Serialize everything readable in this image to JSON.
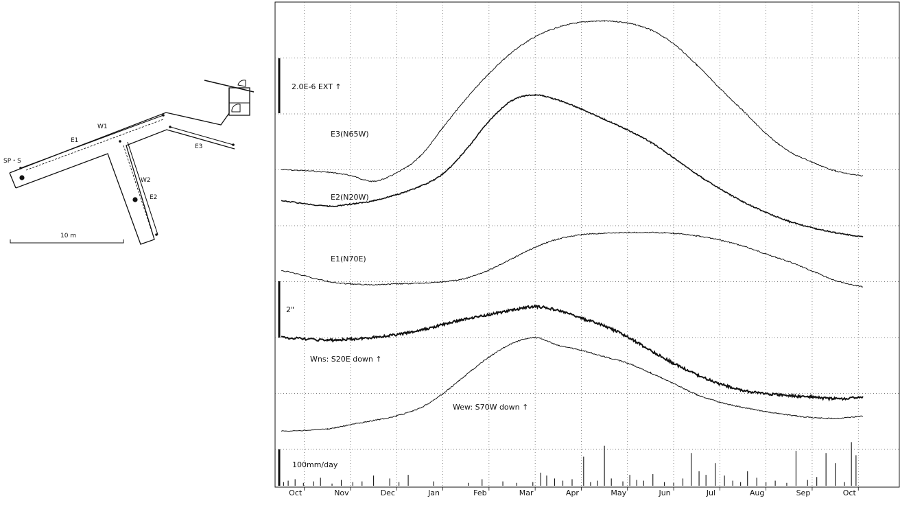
{
  "map": {
    "scale_label": "10 m",
    "labels": {
      "sp": "SP・S",
      "e1": "E1",
      "w1": "W1",
      "e3": "E3",
      "w2": "W2",
      "e2": "E2"
    }
  },
  "chart_data": {
    "type": "line",
    "x_unit": "month",
    "categories": [
      "Oct",
      "Nov",
      "Dec",
      "Jan",
      "Feb",
      "Mar",
      "Apr",
      "May",
      "Jun",
      "Jul",
      "Aug",
      "Sep",
      "Oct"
    ],
    "scales": {
      "strain": "2.0E-6 EXT ↑",
      "tilt": "2\"",
      "rain": "100mm/day"
    },
    "grid": true,
    "series": [
      {
        "name": "E3(N65W)",
        "x": [
          0,
          1,
          1.5,
          2,
          2.5,
          3,
          3.5,
          4,
          4.5,
          5,
          5.5,
          6,
          6.5,
          7,
          7.5,
          8,
          8.5,
          9,
          9.5,
          10,
          10.5,
          11,
          11.5,
          12,
          12.6
        ],
        "y": [
          0.26,
          0.2,
          0.11,
          -0.04,
          0.18,
          0.6,
          1.36,
          2.1,
          2.76,
          3.32,
          3.72,
          3.97,
          4.1,
          4.13,
          4.08,
          3.9,
          3.54,
          2.99,
          2.38,
          1.8,
          1.2,
          0.74,
          0.46,
          0.23,
          0.1
        ]
      },
      {
        "name": "E2(N20W)",
        "x": [
          0,
          1,
          1.5,
          2,
          2.5,
          3,
          3.5,
          4,
          4.5,
          5,
          5.5,
          6,
          6.5,
          7,
          7.5,
          8,
          8.5,
          9,
          9.5,
          10,
          10.5,
          11,
          11.5,
          12,
          12.6
        ],
        "y": [
          0.34,
          0.19,
          0.25,
          0.35,
          0.53,
          0.76,
          1.13,
          1.83,
          2.67,
          3.27,
          3.43,
          3.28,
          3.02,
          2.72,
          2.41,
          2.06,
          1.6,
          1.12,
          0.7,
          0.32,
          0.01,
          -0.25,
          -0.44,
          -0.58,
          -0.7
        ]
      },
      {
        "name": "E1(N70E)",
        "x": [
          0,
          1,
          1.5,
          2,
          2.5,
          3,
          3.5,
          4,
          4.5,
          5,
          5.5,
          6,
          6.5,
          7,
          7.5,
          8,
          8.5,
          9,
          9.5,
          10,
          10.5,
          11,
          11.5,
          12,
          12.6
        ],
        "y": [
          0.45,
          0.16,
          0.08,
          0.06,
          0.08,
          0.1,
          0.14,
          0.24,
          0.47,
          0.79,
          1.11,
          1.34,
          1.46,
          1.5,
          1.52,
          1.52,
          1.5,
          1.43,
          1.31,
          1.14,
          0.92,
          0.7,
          0.44,
          0.18,
          0
        ]
      },
      {
        "name": "Wns: S20E down ↑",
        "x": [
          0,
          1,
          1.5,
          2,
          2.5,
          3,
          3.5,
          4,
          4.5,
          5,
          5.5,
          6,
          6.5,
          7,
          7.5,
          8,
          8.5,
          9,
          9.5,
          10,
          10.5,
          11,
          11.5,
          12,
          12.6
        ],
        "y": [
          0,
          -0.08,
          -0.05,
          0.01,
          0.09,
          0.22,
          0.4,
          0.58,
          0.71,
          0.85,
          0.96,
          0.84,
          0.6,
          0.36,
          0.02,
          -0.4,
          -0.8,
          -1.15,
          -1.43,
          -1.64,
          -1.74,
          -1.8,
          -1.85,
          -1.9,
          -1.85
        ]
      },
      {
        "name": "Wew: S70W down ↑",
        "x": [
          0,
          1,
          1.5,
          2,
          2.5,
          3,
          3.5,
          4,
          4.5,
          5,
          5.5,
          6,
          6.5,
          7,
          7.5,
          8,
          8.5,
          9,
          9.5,
          10,
          10.5,
          11,
          11.5,
          12,
          12.6
        ],
        "y": [
          -2.2,
          -2.15,
          -2.05,
          -1.95,
          -1.84,
          -1.66,
          -1.32,
          -0.88,
          -0.46,
          -0.14,
          0,
          -0.18,
          -0.3,
          -0.45,
          -0.6,
          -0.83,
          -1.08,
          -1.34,
          -1.52,
          -1.64,
          -1.74,
          -1.82,
          -1.88,
          -1.9,
          -1.85
        ]
      }
    ],
    "rain": {
      "x": [
        0.05,
        0.15,
        0.3,
        0.48,
        0.7,
        0.85,
        1.1,
        1.3,
        1.55,
        1.75,
        2.0,
        2.35,
        2.55,
        2.75,
        3.3,
        4.05,
        4.35,
        4.8,
        5.1,
        5.45,
        5.62,
        5.75,
        5.92,
        6.1,
        6.3,
        6.55,
        6.7,
        6.85,
        7.0,
        7.15,
        7.4,
        7.55,
        7.7,
        7.85,
        8.05,
        8.3,
        8.5,
        8.7,
        8.88,
        9.05,
        9.2,
        9.4,
        9.6,
        9.78,
        9.95,
        10.1,
        10.3,
        10.5,
        10.7,
        10.95,
        11.15,
        11.4,
        11.6,
        11.8,
        12.0,
        12.2,
        12.35,
        12.45
      ],
      "mm": [
        10,
        14,
        18,
        8,
        12,
        22,
        6,
        16,
        10,
        12,
        28,
        20,
        10,
        30,
        12,
        8,
        18,
        12,
        8,
        10,
        36,
        28,
        20,
        14,
        18,
        80,
        10,
        14,
        110,
        20,
        12,
        30,
        16,
        14,
        32,
        10,
        8,
        20,
        90,
        40,
        30,
        62,
        28,
        14,
        10,
        40,
        22,
        10,
        14,
        8,
        96,
        16,
        24,
        90,
        62,
        10,
        120,
        84
      ]
    }
  }
}
